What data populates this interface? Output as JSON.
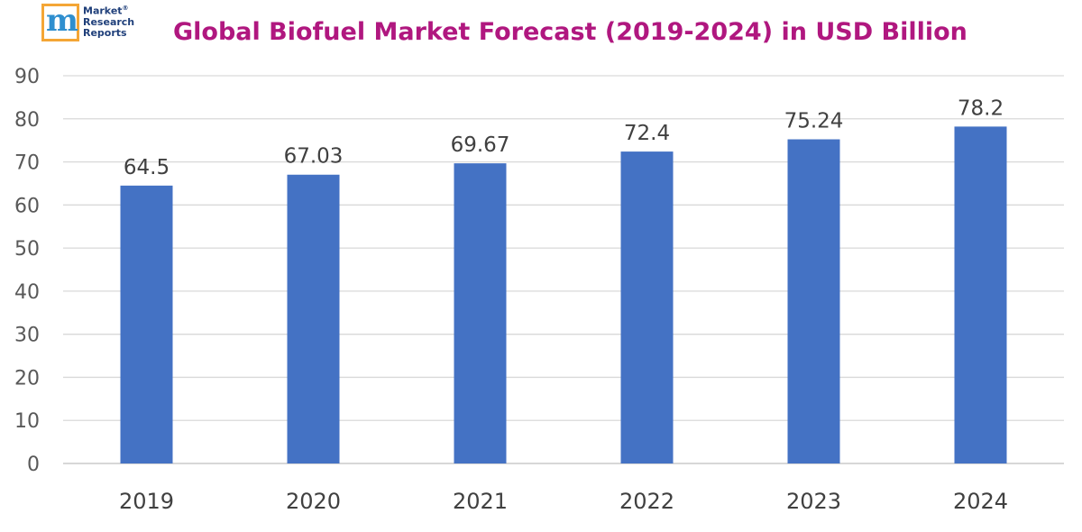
{
  "logo": {
    "line1": "Market",
    "line2": "Research",
    "line3": "Reports",
    "reg": "®",
    "letter": "m"
  },
  "chart_data": {
    "type": "bar",
    "title": "Global Biofuel Market Forecast (2019-2024) in USD Billion",
    "xlabel": "",
    "ylabel": "",
    "categories": [
      "2019",
      "2020",
      "2021",
      "2022",
      "2023",
      "2024"
    ],
    "values": [
      64.5,
      67.03,
      69.67,
      72.4,
      75.24,
      78.2
    ],
    "data_labels": [
      "64.5",
      "67.03",
      "69.67",
      "72.4",
      "75.24",
      "78.2"
    ],
    "ylim": [
      0,
      90
    ],
    "yticks": [
      0,
      10,
      20,
      30,
      40,
      50,
      60,
      70,
      80,
      90
    ],
    "grid": true,
    "legend": "none",
    "bar_color": "#4472c4",
    "grid_color": "#d9d9d9"
  }
}
